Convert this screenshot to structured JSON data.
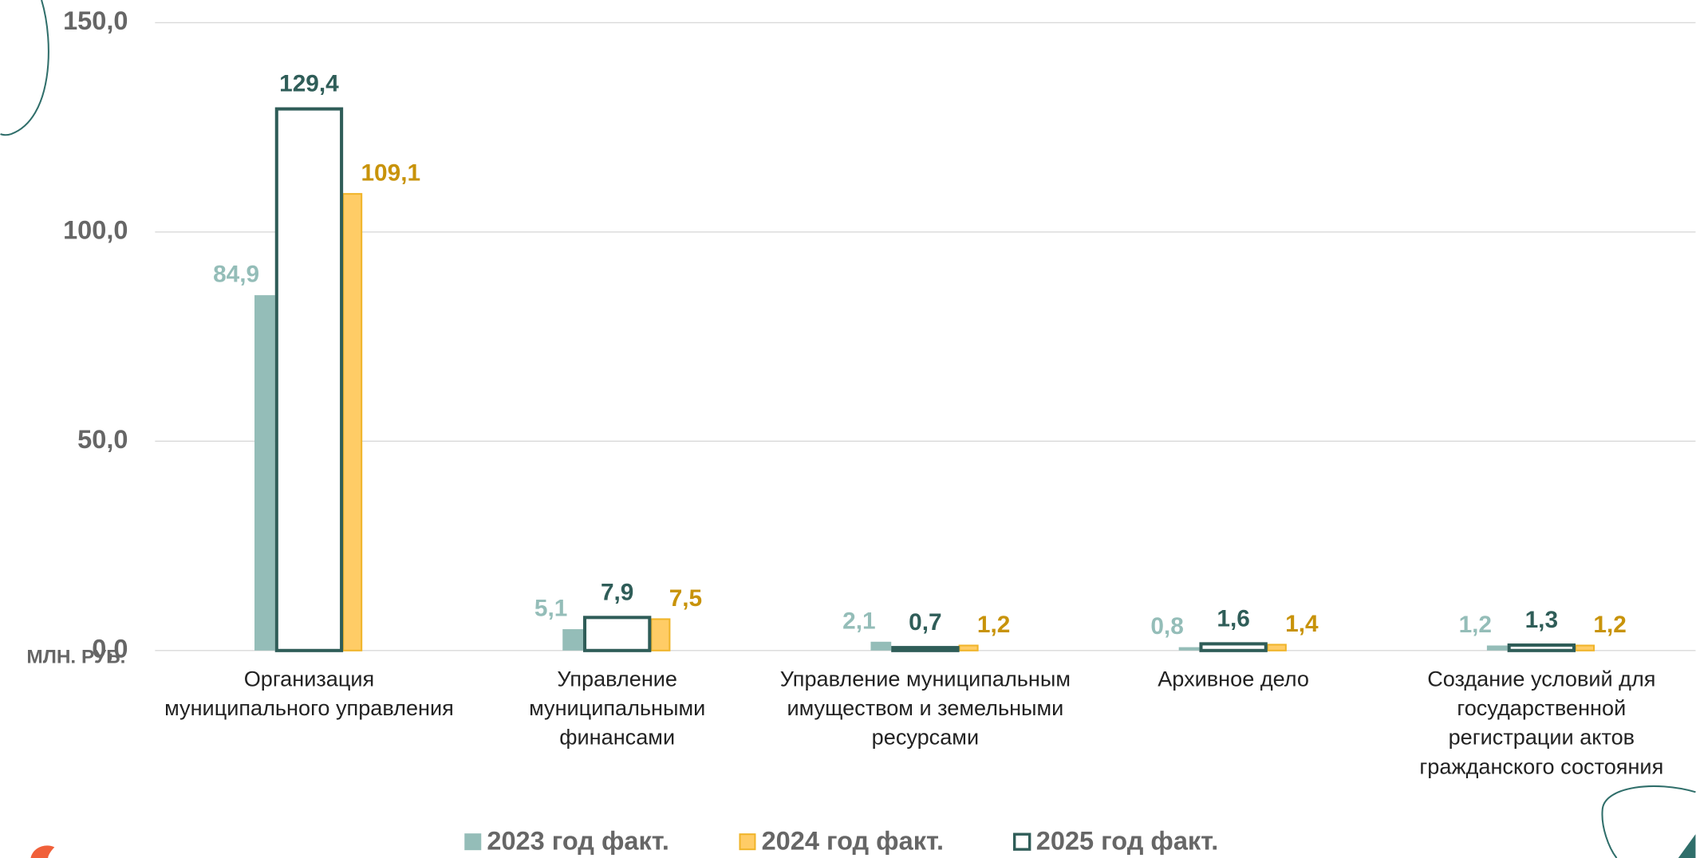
{
  "chart_data": {
    "type": "bar",
    "y_label": "МЛН. РУБ.",
    "categories": [
      "Организация муниципального управления",
      "Управление муниципальными финансами",
      "Управление муниципальным имуществом и земельными ресурсами",
      "Архивное дело",
      "Создание условий для государственной регистрации актов гражданского состояния"
    ],
    "series": [
      {
        "name": "2023 год факт.",
        "color": "#94bdb8",
        "label_color": "#94bdb8",
        "values": [
          84.9,
          5.1,
          2.1,
          0.8,
          1.2
        ],
        "value_labels": [
          "84,9",
          "5,1",
          "2,1",
          "0,8",
          "1,2"
        ]
      },
      {
        "name": "2024 год факт.",
        "color": "#ffcc66",
        "border": "#f0b429",
        "label_color": "#c8930a",
        "values": [
          109.1,
          7.5,
          1.2,
          1.4,
          1.2
        ],
        "value_labels": [
          "109,1",
          "7,5",
          "1,2",
          "1,4",
          "1,2"
        ]
      },
      {
        "name": "2025 год факт.",
        "color": "#ffffff",
        "border": "#2f5d58",
        "label_color": "#2f5d58",
        "values": [
          129.4,
          7.9,
          0.7,
          1.6,
          1.3
        ],
        "value_labels": [
          "129,4",
          "7,9",
          "0,7",
          "1,6",
          "1,3"
        ]
      }
    ],
    "ylim": [
      0,
      150
    ],
    "yticks": [
      {
        "value": 0,
        "label": "0,0"
      },
      {
        "value": 50,
        "label": "50,0"
      },
      {
        "value": 100,
        "label": "100,0"
      },
      {
        "value": 150,
        "label": "150,0"
      }
    ],
    "grid": true
  }
}
